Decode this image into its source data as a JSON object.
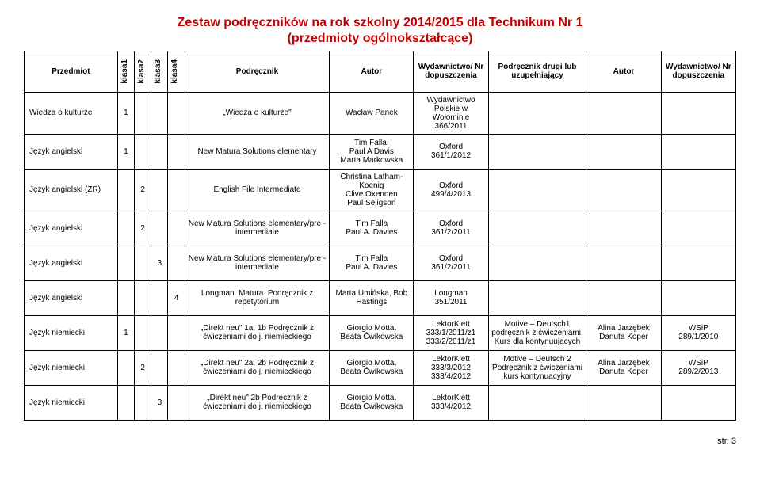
{
  "header": {
    "title": "Zestaw podręczników na rok szkolny 2014/2015 dla Technikum Nr 1",
    "subtitle": "(przedmioty ogólnokształcące)"
  },
  "columns": {
    "subject": "Przedmiot",
    "k1": "klasa1",
    "k2": "klasa2",
    "k3": "klasa3",
    "k4": "klasa4",
    "book": "Podręcznik",
    "author": "Autor",
    "pub": "Wydawnictwo/\nNr dopuszczenia",
    "book2": "Podręcznik drugi lub uzupełniający",
    "author2": "Autor",
    "pub2": "Wydawnictwo/\nNr dopuszczenia"
  },
  "rows": [
    {
      "subject": "Wiedza o kulturze",
      "k1": "1",
      "k2": "",
      "k3": "",
      "k4": "",
      "book": "„Wiedza o kulturze\"",
      "author": "Wacław Panek",
      "pub": "Wydawnictwo Polskie w Wołominie 366/2011",
      "book2": "",
      "author2": "",
      "pub2": ""
    },
    {
      "subject": "Język angielski",
      "k1": "1",
      "k2": "",
      "k3": "",
      "k4": "",
      "book": "New Matura Solutions elementary",
      "author": "Tim Falla,\nPaul A Davis\nMarta Markowska",
      "pub": "Oxford\n361/1/2012",
      "book2": "",
      "author2": "",
      "pub2": ""
    },
    {
      "subject": "Język angielski (ZR)",
      "k1": "",
      "k2": "2",
      "k3": "",
      "k4": "",
      "book": "English File Intermediate",
      "author": "Christina Latham-Koenig\nClive Oxenden\nPaul Seligson",
      "pub": "Oxford\n499/4/2013",
      "book2": "",
      "author2": "",
      "pub2": ""
    },
    {
      "subject": "Język angielski",
      "k1": "",
      "k2": "2",
      "k3": "",
      "k4": "",
      "book": "New Matura Solutions elementary/pre -intermediate",
      "author": "Tim Falla\nPaul A. Davies",
      "pub": "Oxford\n361/2/2011",
      "book2": "",
      "author2": "",
      "pub2": ""
    },
    {
      "subject": "Język angielski",
      "k1": "",
      "k2": "",
      "k3": "3",
      "k4": "",
      "book": "New Matura Solutions elementary/pre -intermediate",
      "author": "Tim Falla\nPaul A. Davies",
      "pub": "Oxford\n361/2/2011",
      "book2": "",
      "author2": "",
      "pub2": ""
    },
    {
      "subject": "Język angielski",
      "k1": "",
      "k2": "",
      "k3": "",
      "k4": "4",
      "book": "Longman. Matura. Podręcznik z repetytorium",
      "author": "Marta Umińska, Bob Hastings",
      "pub": "Longman\n351/2011",
      "book2": "",
      "author2": "",
      "pub2": ""
    },
    {
      "subject": "Język niemiecki",
      "k1": "1",
      "k2": "",
      "k3": "",
      "k4": "",
      "book": "„Direkt neu\" 1a, 1b Podręcznik z ćwiczeniami do j. niemieckiego",
      "author": "Giorgio Motta,\nBeata Ćwikowska",
      "pub": "LektorKlett\n333/1/2011/z1\n333/2/2011/z1",
      "book2": "Motive – Deutsch1 podręcznik z ćwiczeniami. Kurs dla kontynuujących",
      "author2": "Alina Jarzębek\nDanuta Koper",
      "pub2": "WSiP\n289/1/2010"
    },
    {
      "subject": "Język niemiecki",
      "k1": "",
      "k2": "2",
      "k3": "",
      "k4": "",
      "book": "„Direkt neu\" 2a, 2b Podręcznik z ćwiczeniami do j. niemieckiego",
      "author": "Giorgio Motta,\nBeata Ćwikowska",
      "pub": "LektorKlett\n333/3/2012\n333/4/2012",
      "book2": "Motive – Deutsch 2 Podręcznik z ćwiczeniami kurs kontynuacyjny",
      "author2": "Alina Jarzębek\nDanuta Koper",
      "pub2": "WSiP\n289/2/2013"
    },
    {
      "subject": "Język niemiecki",
      "k1": "",
      "k2": "",
      "k3": "3",
      "k4": "",
      "book": "„Direkt neu\" 2b Podręcznik z ćwiczeniami do j. niemieckiego",
      "author": "Giorgio Motta,\nBeata Ćwikowska",
      "pub": "LektorKlett\n333/4/2012",
      "book2": "",
      "author2": "",
      "pub2": ""
    }
  ],
  "footer": "str. 3"
}
